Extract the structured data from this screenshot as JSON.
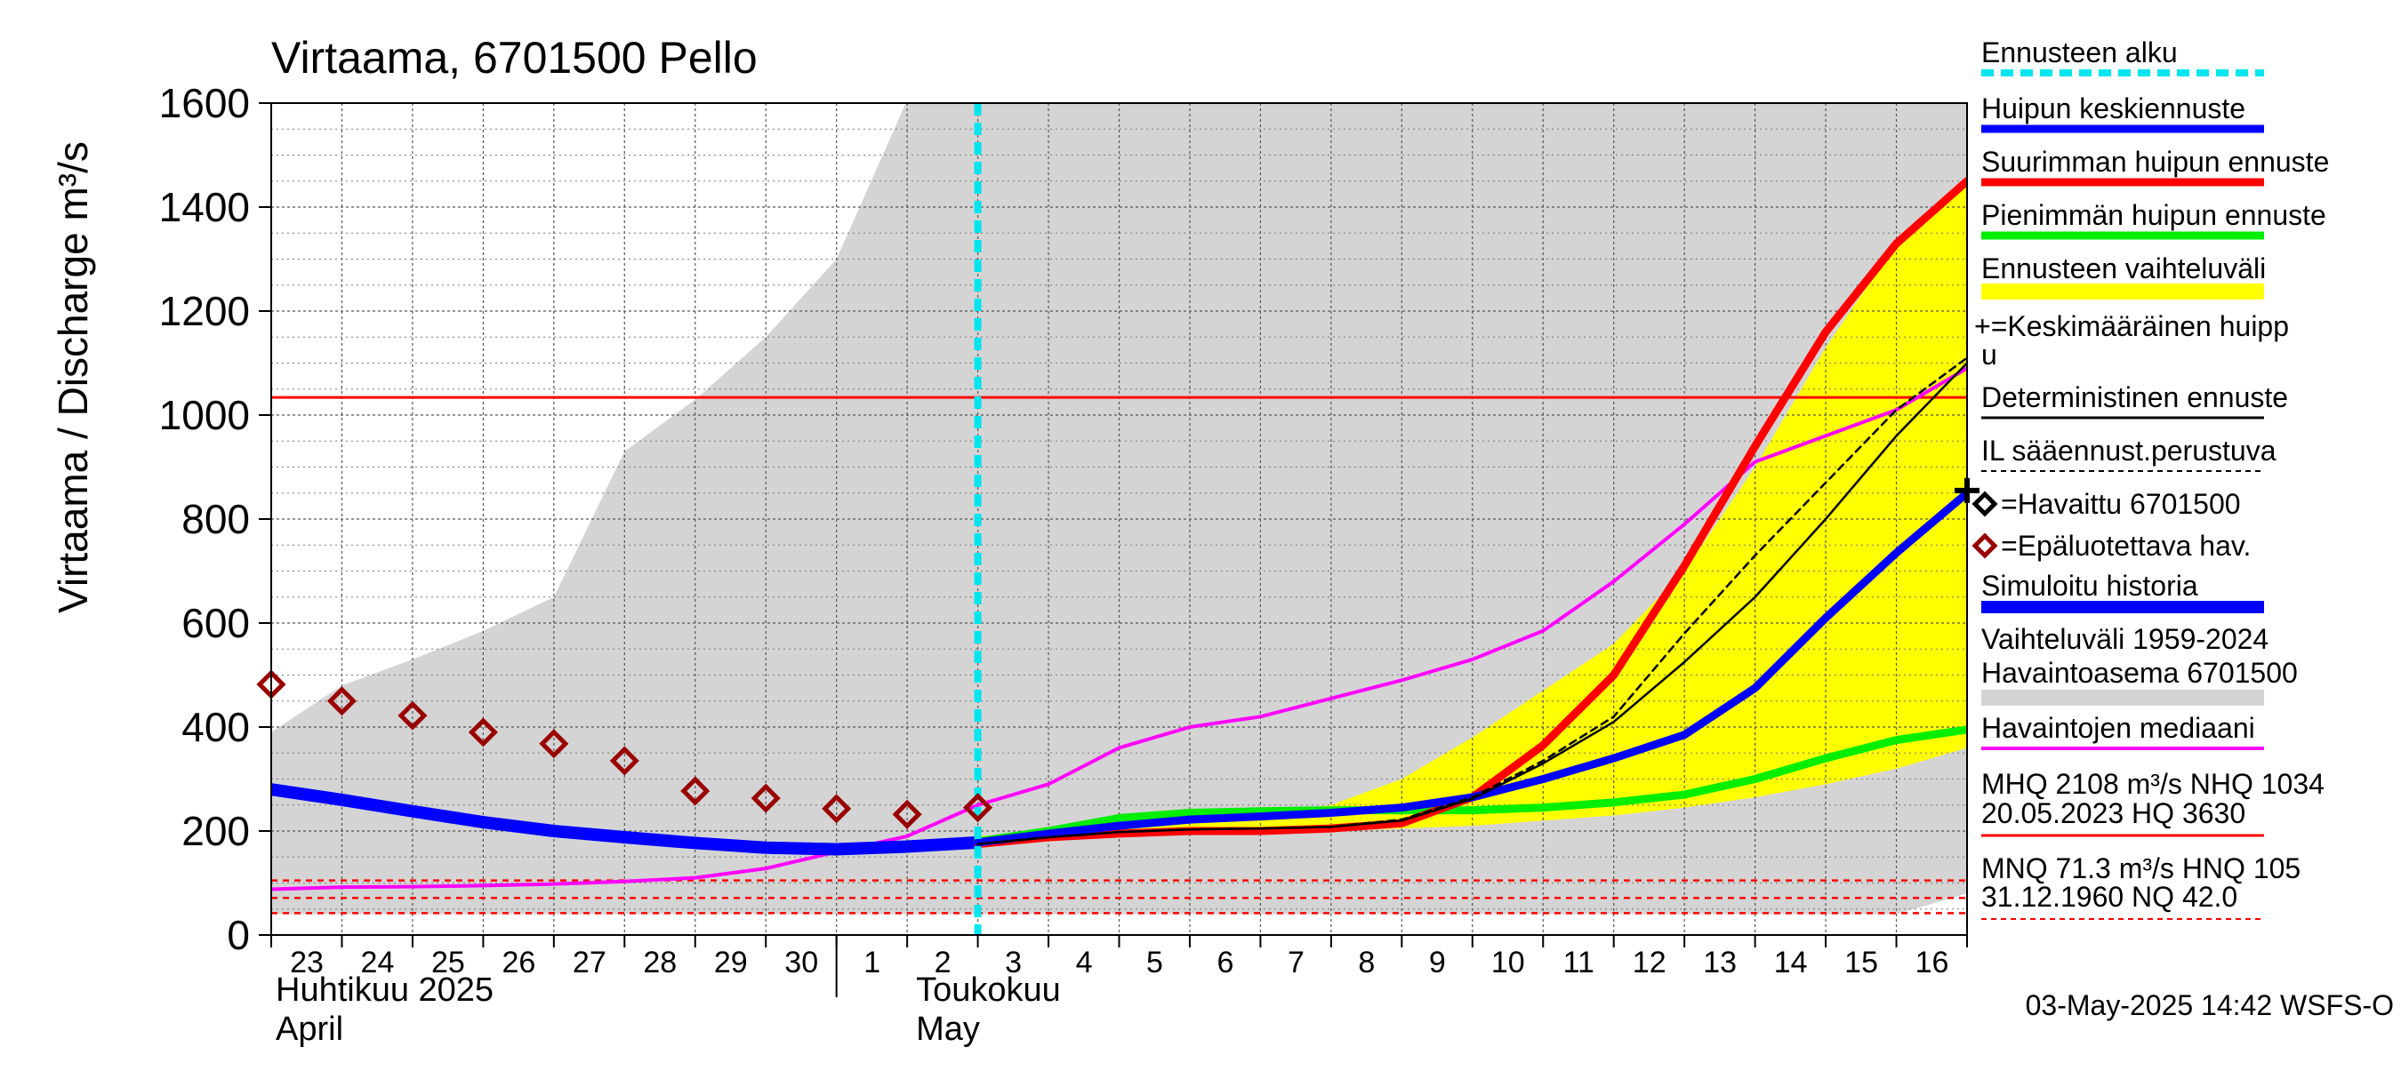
{
  "chart_data": {
    "type": "line",
    "title": "Virtaama, 6701500 Pello",
    "ylabel": "Virtaama / Discharge   m³/s",
    "ylim": [
      0,
      1600
    ],
    "yticks": [
      0,
      200,
      400,
      600,
      800,
      1000,
      1200,
      1400,
      1600
    ],
    "xlim": [
      23,
      47
    ],
    "grid": true,
    "x_tick_labels": [
      "23",
      "24",
      "25",
      "26",
      "27",
      "28",
      "29",
      "30",
      "1",
      "2",
      "3",
      "4",
      "5",
      "6",
      "7",
      "8",
      "9",
      "10",
      "11",
      "12",
      "13",
      "14",
      "15",
      "16"
    ],
    "month_labels": [
      {
        "x": 23,
        "fi": "Huhtikuu  2025",
        "en": "April"
      },
      {
        "x": 32,
        "fi": "Toukokuu",
        "en": "May"
      }
    ],
    "month_boundary_x": 31,
    "forecast_start_x": 33,
    "timestamp": "03-May-2025 14:42 WSFS-O",
    "reference_lines": {
      "mhq": 1034,
      "mnq": 71.3,
      "nq": 42.0,
      "hnq": 105,
      "colors": {
        "mhq": "#ff0000",
        "low": "#ff0000"
      }
    },
    "range_band": {
      "name": "Vaihteluväli 1959-2024",
      "color": "#d4d4d4",
      "x": [
        23,
        24,
        25,
        26,
        27,
        28,
        29,
        30,
        31,
        31.98,
        32,
        33,
        34,
        35,
        36,
        37,
        38,
        39,
        40,
        41,
        42,
        43,
        44,
        45,
        46,
        47
      ],
      "upper": [
        390,
        480,
        530,
        585,
        650,
        930,
        1030,
        1150,
        1300,
        1600,
        1600,
        1600,
        1600,
        1600,
        1600,
        1600,
        1600,
        1600,
        1600,
        1600,
        1600,
        1600,
        1600,
        1600,
        1600,
        1600
      ],
      "lower": [
        40,
        40,
        40,
        40,
        40,
        40,
        40,
        40,
        40,
        40,
        40,
        40,
        40,
        40,
        40,
        40,
        40,
        40,
        40,
        40,
        40,
        40,
        40,
        40,
        40,
        80
      ]
    },
    "forecast_band": {
      "name": "Ennusteen vaihteluväli",
      "color": "#ffff00",
      "x": [
        33,
        34,
        35,
        36,
        37,
        38,
        39,
        40,
        41,
        42,
        43,
        44,
        45,
        46,
        47
      ],
      "upper": [
        190,
        200,
        215,
        225,
        235,
        250,
        300,
        380,
        470,
        560,
        700,
        900,
        1130,
        1330,
        1440
      ],
      "lower": [
        170,
        180,
        190,
        195,
        195,
        200,
        205,
        210,
        220,
        230,
        245,
        265,
        290,
        320,
        360
      ]
    },
    "series": [
      {
        "name": "Havaintojen mediaani",
        "color": "#ff00ff",
        "width": 4,
        "dash": "",
        "x": [
          23,
          24,
          25,
          26,
          27,
          28,
          29,
          30,
          31,
          32,
          33,
          34,
          35,
          36,
          37,
          38,
          39,
          40,
          41,
          42,
          43,
          44,
          45,
          46,
          47
        ],
        "y": [
          88,
          92,
          93,
          95,
          98,
          103,
          110,
          128,
          160,
          190,
          250,
          290,
          360,
          400,
          420,
          455,
          490,
          530,
          585,
          680,
          790,
          910,
          960,
          1010,
          1090
        ]
      },
      {
        "name": "Simuloitu historia",
        "color": "#0000ff",
        "width": 14,
        "dash": "",
        "x": [
          23,
          24,
          25,
          26,
          27,
          28,
          29,
          30,
          31,
          32,
          33
        ],
        "y": [
          280,
          260,
          238,
          217,
          200,
          188,
          177,
          168,
          165,
          170,
          178
        ]
      },
      {
        "name": "Pienimmän huipun ennuste",
        "color": "#00ee00",
        "width": 9,
        "dash": "",
        "x": [
          33,
          34,
          35,
          36,
          37,
          38,
          39,
          40,
          41,
          42,
          43,
          44,
          45,
          46,
          47
        ],
        "y": [
          180,
          200,
          225,
          235,
          238,
          240,
          240,
          240,
          245,
          255,
          270,
          300,
          340,
          375,
          395
        ]
      },
      {
        "name": "Suurimman huipun ennuste",
        "color": "#ff0000",
        "width": 9,
        "dash": "",
        "x": [
          33,
          34,
          35,
          36,
          37,
          38,
          39,
          40,
          41,
          42,
          43,
          44,
          45,
          46,
          47
        ],
        "y": [
          175,
          188,
          195,
          200,
          200,
          205,
          215,
          265,
          365,
          500,
          710,
          940,
          1160,
          1330,
          1450
        ]
      },
      {
        "name": "Huipun keskiennuste",
        "color": "#0000ff",
        "width": 9,
        "dash": "",
        "x": [
          33,
          34,
          35,
          36,
          37,
          38,
          39,
          40,
          41,
          42,
          43,
          44,
          45,
          46,
          47
        ],
        "y": [
          178,
          195,
          210,
          222,
          228,
          235,
          245,
          265,
          300,
          340,
          385,
          475,
          610,
          735,
          850
        ]
      },
      {
        "name": "Deterministinen ennuste",
        "color": "#000000",
        "width": 2.5,
        "dash": "",
        "x": [
          33,
          34,
          35,
          36,
          37,
          38,
          39,
          40,
          41,
          42,
          43,
          44,
          45,
          46,
          47
        ],
        "y": [
          175,
          188,
          198,
          203,
          205,
          208,
          220,
          262,
          330,
          410,
          525,
          650,
          800,
          960,
          1100
        ]
      },
      {
        "name": "IL sääennust.perustuva",
        "color": "#000000",
        "width": 2.5,
        "dash": "8,6",
        "x": [
          33,
          34,
          35,
          36,
          37,
          38,
          39,
          40,
          41,
          42,
          43,
          44,
          45,
          46,
          47
        ],
        "y": [
          175,
          188,
          198,
          203,
          205,
          208,
          222,
          265,
          335,
          420,
          580,
          730,
          870,
          1010,
          1110
        ]
      }
    ],
    "observed": {
      "name": "Epäluotettava hav.",
      "color": "#990000",
      "x": [
        23,
        24,
        25,
        26,
        27,
        28,
        29,
        30,
        31,
        32,
        33
      ],
      "y": [
        482,
        450,
        422,
        390,
        368,
        335,
        277,
        263,
        243,
        232,
        245
      ]
    },
    "peak_marker": {
      "x": 47,
      "y": 855
    }
  },
  "legend": [
    {
      "key": "start",
      "label": "Ennusteen alku",
      "color": "#00e5ee",
      "dash": "14,8",
      "width": 8
    },
    {
      "key": "mean",
      "label": "Huipun keskiennuste",
      "color": "#0000ff",
      "width": 9
    },
    {
      "key": "max",
      "label": "Suurimman huipun ennuste",
      "color": "#ff0000",
      "width": 9
    },
    {
      "key": "min",
      "label": "Pienimmän huipun ennuste",
      "color": "#00ee00",
      "width": 9
    },
    {
      "key": "range",
      "label": "Ennusteen vaihteluväli",
      "color": "#ffff00",
      "width": 18
    },
    {
      "key": "avgpeak",
      "label": "+=Keskimääräinen huipp",
      "label2": "u"
    },
    {
      "key": "det",
      "label": "Deterministinen ennuste",
      "color": "#000000",
      "width": 3
    },
    {
      "key": "il",
      "label": "IL sääennust.perustuva",
      "color": "#000000",
      "dash": "6,5",
      "width": 2
    },
    {
      "key": "obs",
      "label": "=Havaittu 6701500"
    },
    {
      "key": "unrel",
      "label": "=Epäluotettava hav."
    },
    {
      "key": "sim",
      "label": "Simuloitu historia",
      "color": "#0000ff",
      "width": 14
    },
    {
      "key": "hist",
      "label": "Vaihteluväli 1959-2024",
      "label2": " Havaintoasema 6701500",
      "color": "#d4d4d4",
      "width": 18
    },
    {
      "key": "median",
      "label": "Havaintojen mediaani",
      "color": "#ff00ff",
      "width": 4
    },
    {
      "key": "mhq",
      "label": "MHQ 2108 m³/s NHQ 1034",
      "label2": "20.05.2023 HQ 3630",
      "color": "#ff0000",
      "width": 3
    },
    {
      "key": "mnq",
      "label": "MNQ 71.3 m³/s HNQ  105",
      "label2": "31.12.1960 NQ 42.0",
      "color": "#ff0000",
      "dash": "6,5",
      "width": 2
    }
  ]
}
